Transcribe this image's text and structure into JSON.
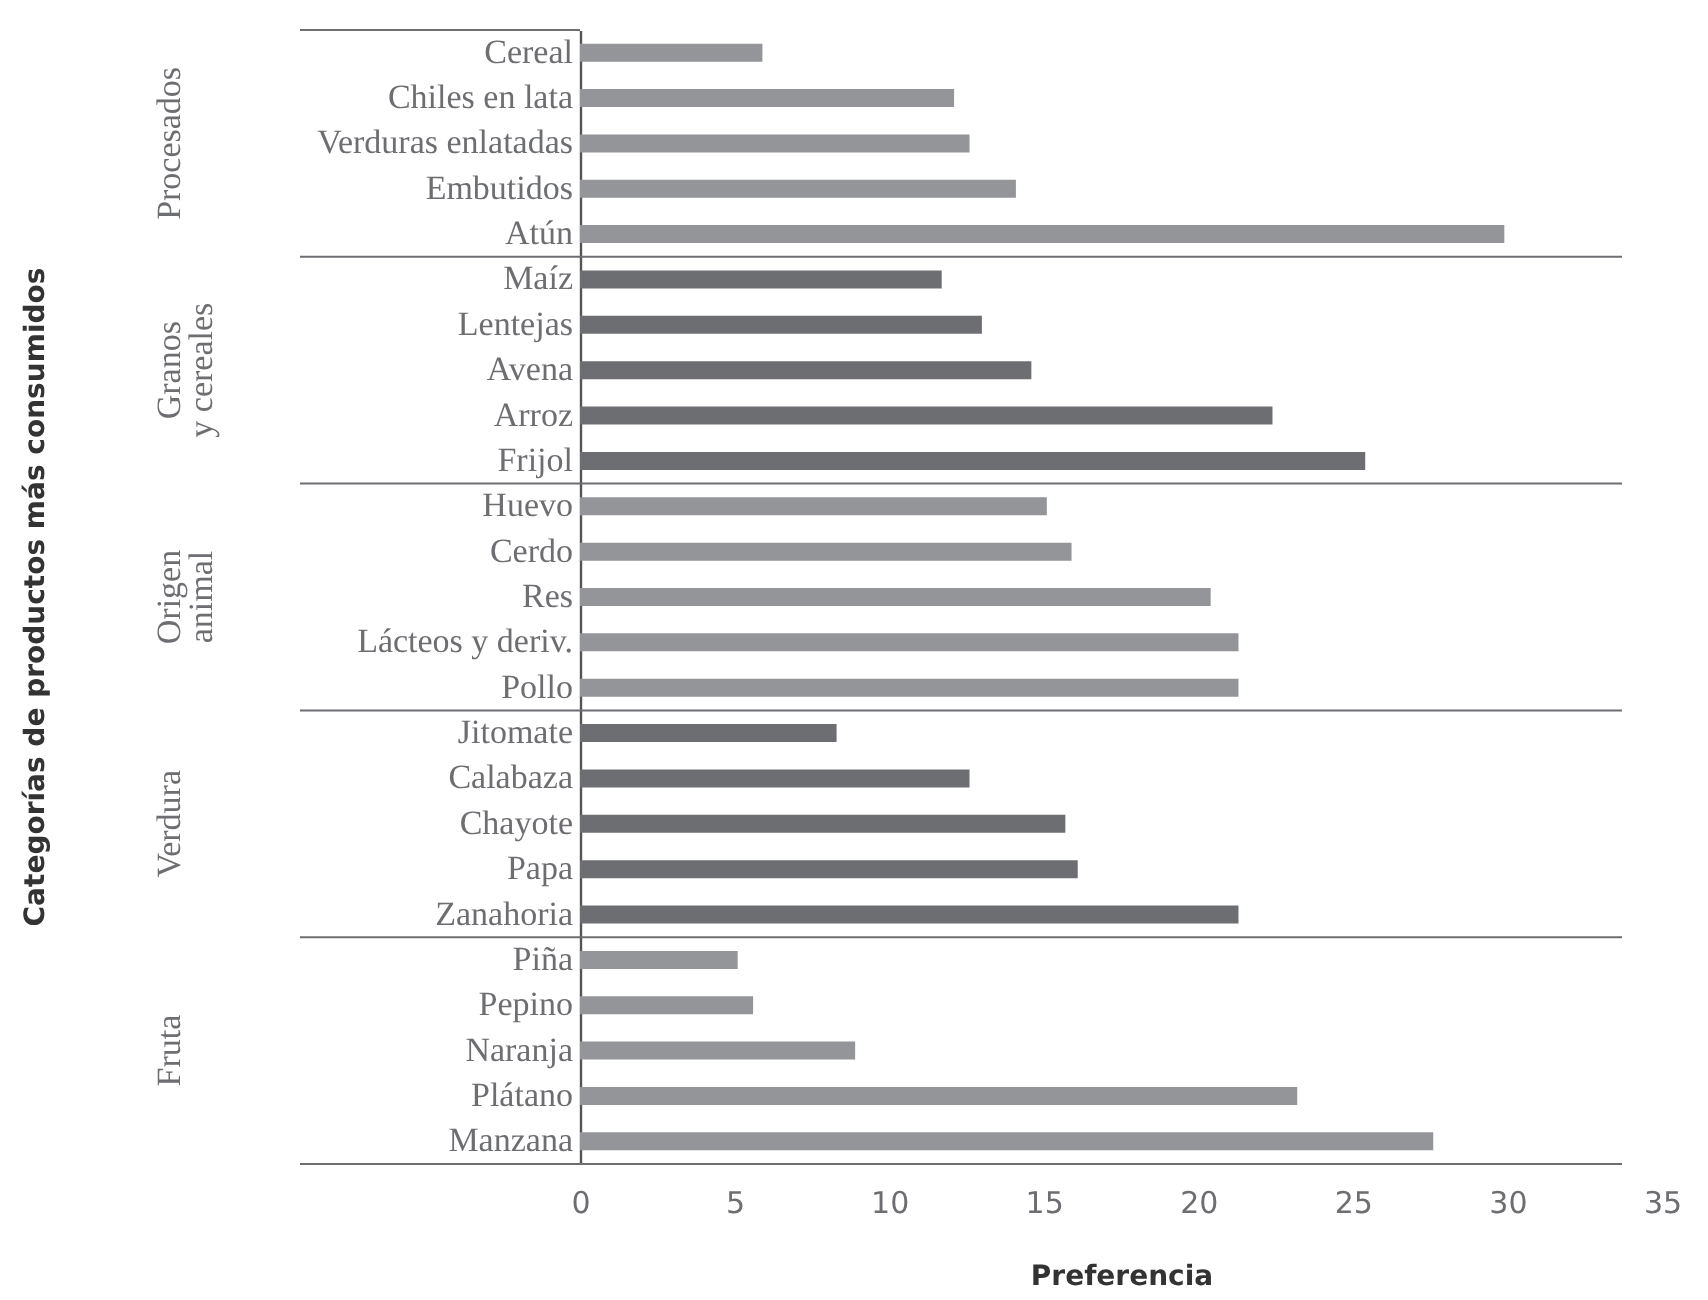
{
  "chart_data": {
    "type": "bar",
    "orientation": "horizontal",
    "xlabel": "Preferencia",
    "categories": [
      "Cereal",
      "Chiles en lata",
      "Verduras enlatadas",
      "Embutidos",
      "Atún",
      "Maíz",
      "Lentejas",
      "Avena",
      "Arroz",
      "Frijol",
      "Huevo",
      "Cerdo",
      "Res",
      "Lácteos y deriv.",
      "Pollo",
      "Jitomate",
      "Calabaza",
      "Chayote",
      "Papa",
      "Zanahoria",
      "Piña",
      "Pepino",
      "Naranja",
      "Plátano",
      "Manzana"
    ],
    "values": [
      5.9,
      12.1,
      12.6,
      14.1,
      29.9,
      11.7,
      13.0,
      14.6,
      22.4,
      25.4,
      15.1,
      15.9,
      20.4,
      21.3,
      21.3,
      8.3,
      12.6,
      15.7,
      16.1,
      21.3,
      5.1,
      5.6,
      8.9,
      23.2,
      27.6
    ],
    "colors": [
      "#939598",
      "#939598",
      "#939598",
      "#939598",
      "#939598",
      "#6d6e71",
      "#6d6e71",
      "#6d6e71",
      "#6d6e71",
      "#6d6e71",
      "#939598",
      "#939598",
      "#939598",
      "#939598",
      "#939598",
      "#6d6e71",
      "#6d6e71",
      "#6d6e71",
      "#6d6e71",
      "#6d6e71",
      "#939598",
      "#939598",
      "#939598",
      "#939598",
      "#939598"
    ],
    "xlim": [
      0,
      35
    ],
    "xticks": [
      0,
      5,
      10,
      15,
      20,
      25,
      30,
      35
    ],
    "annotations": [
      "Categorías de productos más consumidos",
      "Procesados",
      "Granos\ny cereales",
      "Origen\nanimal",
      "Verdura",
      "Fruta"
    ],
    "grid": false
  }
}
